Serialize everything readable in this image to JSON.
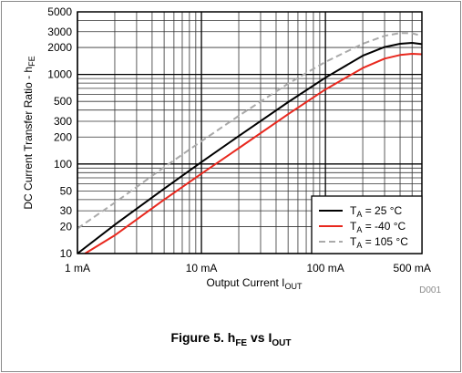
{
  "chart_data": {
    "type": "line",
    "x_scale": "log",
    "y_scale": "log",
    "xlim": [
      1,
      600
    ],
    "ylim": [
      10,
      5000
    ],
    "x_ticks": [
      {
        "value": 1,
        "label": "1 mA"
      },
      {
        "value": 10,
        "label": "10 mA"
      },
      {
        "value": 100,
        "label": "100 mA"
      },
      {
        "value": 500,
        "label": "500 mA"
      }
    ],
    "y_ticks": [
      {
        "value": 10,
        "label": "10"
      },
      {
        "value": 20,
        "label": "20"
      },
      {
        "value": 30,
        "label": "30"
      },
      {
        "value": 50,
        "label": "50"
      },
      {
        "value": 100,
        "label": "100"
      },
      {
        "value": 200,
        "label": "200"
      },
      {
        "value": 300,
        "label": "300"
      },
      {
        "value": 500,
        "label": "500"
      },
      {
        "value": 1000,
        "label": "1000"
      },
      {
        "value": 2000,
        "label": "2000"
      },
      {
        "value": 3000,
        "label": "3000"
      },
      {
        "value": 5000,
        "label": "5000"
      }
    ],
    "xlabel": {
      "main": "Output Current I",
      "sub": "OUT"
    },
    "ylabel": {
      "main": "DC Current Transfer Ratio - h",
      "sub": "FE"
    },
    "grid": true,
    "legend_position": "bottom-right",
    "watermark": "D001",
    "series": [
      {
        "name": "T_A = 25 °C",
        "legend": {
          "prefix": "T",
          "sub": "A",
          "suffix": " = 25 °C"
        },
        "color": "#000000",
        "dashed": false,
        "x": [
          1,
          2,
          5,
          10,
          20,
          50,
          100,
          200,
          300,
          400,
          500,
          600
        ],
        "y": [
          10,
          21,
          53,
          105,
          205,
          490,
          920,
          1620,
          2020,
          2200,
          2250,
          2180
        ]
      },
      {
        "name": "T_A = -40 °C",
        "legend": {
          "prefix": "T",
          "sub": "A",
          "suffix": " = -40 °C"
        },
        "color": "#e8281e",
        "dashed": false,
        "x": [
          1.15,
          2,
          5,
          10,
          20,
          50,
          100,
          200,
          300,
          400,
          500,
          600
        ],
        "y": [
          10,
          16,
          40,
          78,
          150,
          360,
          680,
          1180,
          1500,
          1650,
          1700,
          1680
        ]
      },
      {
        "name": "T_A = 105 °C",
        "legend": {
          "prefix": "T",
          "sub": "A",
          "suffix": " = 105 °C"
        },
        "color": "#aaaaaa",
        "dashed": true,
        "x": [
          1,
          2,
          5,
          10,
          20,
          50,
          100,
          200,
          300,
          400,
          500,
          600
        ],
        "y": [
          19,
          37,
          92,
          180,
          345,
          790,
          1380,
          2200,
          2700,
          2900,
          2880,
          2700
        ]
      }
    ]
  },
  "caption": {
    "main": "Figure 5. h",
    "sub1": "FE",
    "mid": " vs I",
    "sub2": "OUT"
  }
}
